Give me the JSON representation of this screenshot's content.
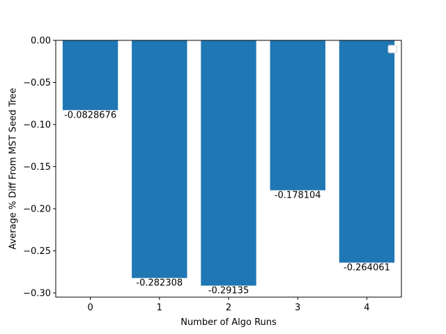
{
  "chart_data": {
    "type": "bar",
    "categories": [
      "0",
      "1",
      "2",
      "3",
      "4"
    ],
    "values": [
      -0.0828676,
      -0.282308,
      -0.29135,
      -0.178104,
      -0.264061
    ],
    "data_labels": [
      "-0.0828676",
      "-0.282308",
      "-0.29135",
      "-0.178104",
      "-0.264061"
    ],
    "title": "",
    "xlabel": "Number of Algo Runs",
    "ylabel": "Average % Diff From MST Seed Tree",
    "ylim": [
      -0.305,
      0.0
    ],
    "xlim": [
      -0.5,
      4.5
    ],
    "yticks": [
      0.0,
      -0.05,
      -0.1,
      -0.15,
      -0.2,
      -0.25,
      -0.3
    ],
    "ytick_labels": [
      "0.00",
      "−0.05",
      "−0.10",
      "−0.15",
      "−0.20",
      "−0.25",
      "−0.30"
    ],
    "grid": false,
    "legend": {
      "placement": "top-right",
      "entries": []
    },
    "bar_color": "#1f77b4"
  }
}
